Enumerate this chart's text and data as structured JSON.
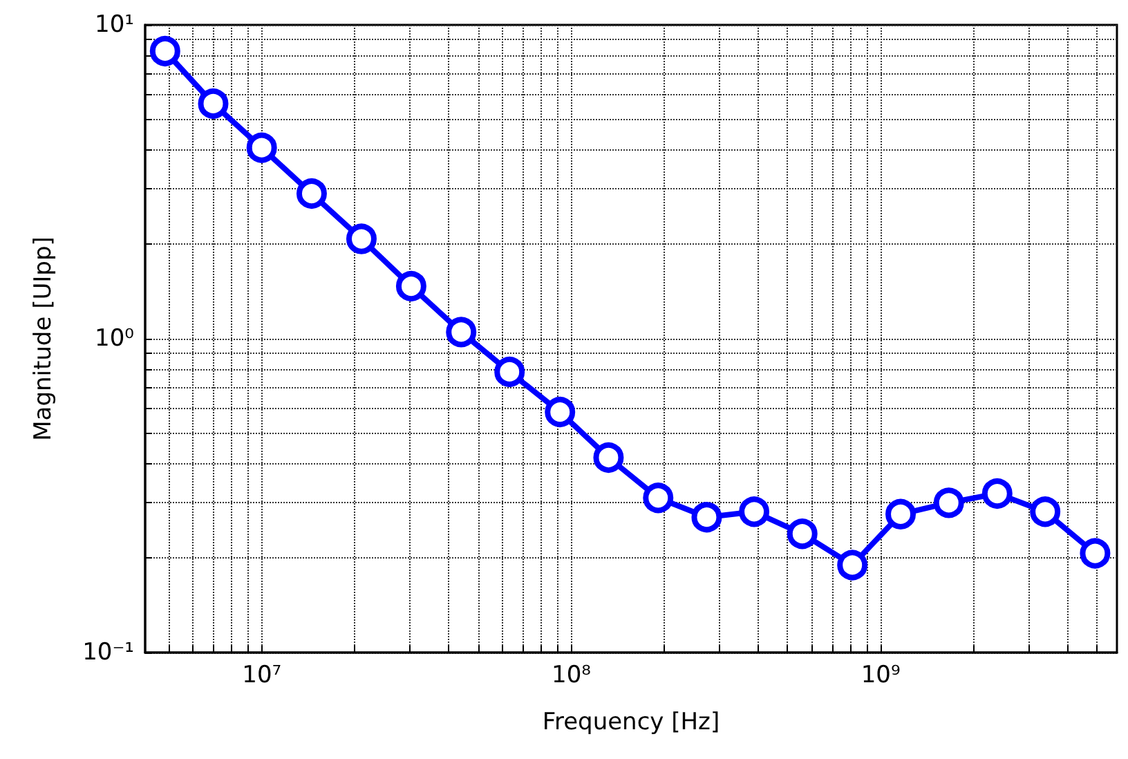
{
  "chart_data": {
    "type": "line",
    "xlabel": "Frequency [Hz]",
    "ylabel": "Magnitude [UIpp]",
    "x": [
      4870000.0,
      6970000.0,
      10000000.0,
      14500000.0,
      21000000.0,
      30400000.0,
      44100000.0,
      63200000.0,
      92000000.0,
      132000000.0,
      191000000.0,
      274000000.0,
      390000000.0,
      558000000.0,
      810000000.0,
      1160000000.0,
      1660000000.0,
      2380000000.0,
      3400000000.0,
      4930000000.0
    ],
    "series": [
      {
        "color": "#0000ff",
        "values": [
          8.25,
          5.61,
          4.06,
          2.9,
          2.08,
          1.47,
          1.05,
          0.784,
          0.584,
          0.418,
          0.311,
          0.27,
          0.281,
          0.239,
          0.19,
          0.276,
          0.3,
          0.321,
          0.281,
          0.207
        ]
      }
    ],
    "log": "xy",
    "xlim": [
      4200000.0,
      5800000000.0
    ],
    "ylim": [
      0.1,
      10
    ],
    "xticks": [
      {
        "value": 5000000.0,
        "label": null
      },
      {
        "value": 6000000.0,
        "label": null
      },
      {
        "value": 7000000.0,
        "label": null
      },
      {
        "value": 8000000.0,
        "label": null
      },
      {
        "value": 9000000.0,
        "label": null
      },
      {
        "value": 10000000.0,
        "label": "10⁷"
      },
      {
        "value": 20000000.0,
        "label": null
      },
      {
        "value": 30000000.0,
        "label": null
      },
      {
        "value": 40000000.0,
        "label": null
      },
      {
        "value": 50000000.0,
        "label": null
      },
      {
        "value": 60000000.0,
        "label": null
      },
      {
        "value": 70000000.0,
        "label": null
      },
      {
        "value": 80000000.0,
        "label": null
      },
      {
        "value": 90000000.0,
        "label": null
      },
      {
        "value": 100000000.0,
        "label": "10⁸"
      },
      {
        "value": 200000000.0,
        "label": null
      },
      {
        "value": 300000000.0,
        "label": null
      },
      {
        "value": 400000000.0,
        "label": null
      },
      {
        "value": 500000000.0,
        "label": null
      },
      {
        "value": 600000000.0,
        "label": null
      },
      {
        "value": 700000000.0,
        "label": null
      },
      {
        "value": 800000000.0,
        "label": null
      },
      {
        "value": 900000000.0,
        "label": null
      },
      {
        "value": 1000000000.0,
        "label": "10⁹"
      },
      {
        "value": 2000000000.0,
        "label": null
      },
      {
        "value": 3000000000.0,
        "label": null
      },
      {
        "value": 4000000000.0,
        "label": null
      },
      {
        "value": 5000000000.0,
        "label": null
      }
    ],
    "yticks": [
      {
        "value": 0.1,
        "label": "10⁻¹"
      },
      {
        "value": 0.2,
        "label": null
      },
      {
        "value": 0.3,
        "label": null
      },
      {
        "value": 0.4,
        "label": null
      },
      {
        "value": 0.5,
        "label": null
      },
      {
        "value": 0.6,
        "label": null
      },
      {
        "value": 0.7,
        "label": null
      },
      {
        "value": 0.8,
        "label": null
      },
      {
        "value": 0.9,
        "label": null
      },
      {
        "value": 1,
        "label": "10⁰"
      },
      {
        "value": 2,
        "label": null
      },
      {
        "value": 3,
        "label": null
      },
      {
        "value": 4,
        "label": null
      },
      {
        "value": 5,
        "label": null
      },
      {
        "value": 6,
        "label": null
      },
      {
        "value": 7,
        "label": null
      },
      {
        "value": 8,
        "label": null
      },
      {
        "value": 9,
        "label": null
      },
      {
        "value": 10,
        "label": "10¹"
      }
    ],
    "grid": true,
    "marker": "circle",
    "line_style": "solid"
  }
}
